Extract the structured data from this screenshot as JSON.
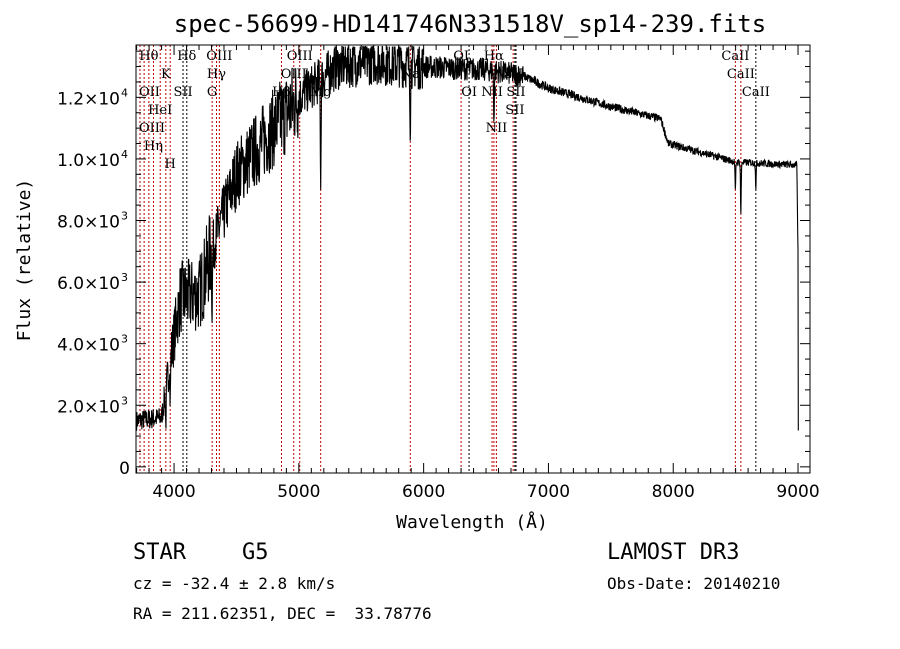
{
  "chart_data": {
    "type": "line",
    "title": "spec-56699-HD141746N331518V_sp14-239.fits",
    "xlabel": "Wavelength (Å)",
    "ylabel": "Flux (relative)",
    "xlim": [
      3695,
      9096
    ],
    "ylim": [
      -200,
      13700
    ],
    "grid": false,
    "x_ticks": [
      4000,
      5000,
      6000,
      7000,
      8000,
      9000
    ],
    "x_tick_labels": [
      "4000",
      "5000",
      "6000",
      "7000",
      "8000",
      "9000"
    ],
    "y_ticks": [
      0,
      2000,
      4000,
      6000,
      8000,
      10000,
      12000
    ],
    "y_tick_labels": [
      {
        "mant": "0",
        "exp": ""
      },
      {
        "mant": "2.0×10",
        "exp": "3"
      },
      {
        "mant": "4.0×10",
        "exp": "3"
      },
      {
        "mant": "6.0×10",
        "exp": "3"
      },
      {
        "mant": "8.0×10",
        "exp": "3"
      },
      {
        "mant": "1.0×10",
        "exp": "4"
      },
      {
        "mant": "1.2×10",
        "exp": "4"
      }
    ],
    "continuum": [
      [
        3700,
        1500
      ],
      [
        3900,
        1600
      ],
      [
        3970,
        3500
      ],
      [
        4050,
        5500
      ],
      [
        4200,
        5600
      ],
      [
        4300,
        7000
      ],
      [
        4500,
        9500
      ],
      [
        4800,
        11000
      ],
      [
        5000,
        12000
      ],
      [
        5300,
        13000
      ],
      [
        5600,
        13200
      ],
      [
        6000,
        13000
      ],
      [
        6500,
        12900
      ],
      [
        6800,
        12700
      ],
      [
        7000,
        12300
      ],
      [
        7500,
        11700
      ],
      [
        7900,
        11300
      ],
      [
        7960,
        10500
      ],
      [
        8500,
        9900
      ],
      [
        8990,
        9800
      ],
      [
        9000,
        7000
      ],
      [
        9003,
        0
      ]
    ],
    "absorption": [
      [
        3934,
        0.45
      ],
      [
        3969,
        0.4
      ],
      [
        4305,
        0.3
      ],
      [
        5175,
        0.28
      ],
      [
        5893,
        0.15
      ],
      [
        6563,
        0.12
      ],
      [
        8498,
        0.1
      ],
      [
        8542,
        0.17
      ],
      [
        8662,
        0.08
      ]
    ],
    "lines": [
      {
        "label": "Hθ",
        "wl": 3798,
        "row": 0,
        "color": "#c00000"
      },
      {
        "label": "K",
        "wl": 3934,
        "row": 0,
        "color": "#c00000"
      },
      {
        "label": "Hδ",
        "wl": 4102,
        "row": 0,
        "color": "#000000"
      },
      {
        "label": "OIII",
        "wl": 4363,
        "row": 0,
        "color": "#c00000"
      },
      {
        "label": "OIII",
        "wl": 5007,
        "row": 0,
        "color": "#c00000"
      },
      {
        "label": "OI",
        "wl": 6300,
        "row": 0,
        "color": "#c00000"
      },
      {
        "label": "Hα",
        "wl": 6563,
        "row": 0,
        "color": "#c00000"
      },
      {
        "label": "SII",
        "wl": 6717,
        "row": 0,
        "color": "#c00000"
      },
      {
        "label": "CaII",
        "wl": 8498,
        "row": 0,
        "color": "#c00000"
      },
      {
        "label": "OII",
        "wl": 3727,
        "row": 1,
        "color": "#c00000"
      },
      {
        "label": "HeI",
        "wl": 3889,
        "row": 1,
        "color": "#c00000"
      },
      {
        "label": "SII",
        "wl": 4072,
        "row": 1,
        "color": "#000000"
      },
      {
        "label": "Hγ",
        "wl": 4340,
        "row": 1,
        "color": "#c00000"
      },
      {
        "label": "OIII",
        "wl": 4959,
        "row": 1,
        "color": "#c00000"
      },
      {
        "label": "Na",
        "wl": 5893,
        "row": 1,
        "color": "#c00000"
      },
      {
        "label": "NII",
        "wl": 6548,
        "row": 1,
        "color": "#c00000"
      },
      {
        "label": "SII",
        "wl": 6731,
        "row": 1,
        "color": "#000000"
      },
      {
        "label": "CaII",
        "wl": 8542,
        "row": 1,
        "color": "#c00000"
      },
      {
        "label": "OIII",
        "wl": 3760,
        "row": 2,
        "color": "#c00000"
      },
      {
        "label": "Hη",
        "wl": 3835,
        "row": 2,
        "color": "#c00000"
      },
      {
        "label": "H",
        "wl": 3969,
        "row": 2,
        "color": "#c00000"
      },
      {
        "label": "G",
        "wl": 4305,
        "row": 2,
        "color": "#c00000"
      },
      {
        "label": "Hβ",
        "wl": 4861,
        "row": 2,
        "color": "#c00000"
      },
      {
        "label": "Mg",
        "wl": 5175,
        "row": 2,
        "color": "#c00000"
      },
      {
        "label": "OI",
        "wl": 6364,
        "row": 2,
        "color": "#000000"
      },
      {
        "label": "NII",
        "wl": 6583,
        "row": 2,
        "color": "#c00000"
      },
      {
        "label": "SII",
        "wl": 6740,
        "row": 2,
        "color": "#000000"
      },
      {
        "label": "CaII",
        "wl": 8662,
        "row": 2,
        "color": "#000000"
      }
    ]
  },
  "annotations": {
    "class": "STAR",
    "subclass": "G5",
    "survey": "LAMOST DR3",
    "cz": "cz = -32.4 ± 2.8 km/s",
    "obs_date": "Obs-Date: 20140210",
    "radec": "RA = 211.62351, DEC =  33.78776"
  }
}
